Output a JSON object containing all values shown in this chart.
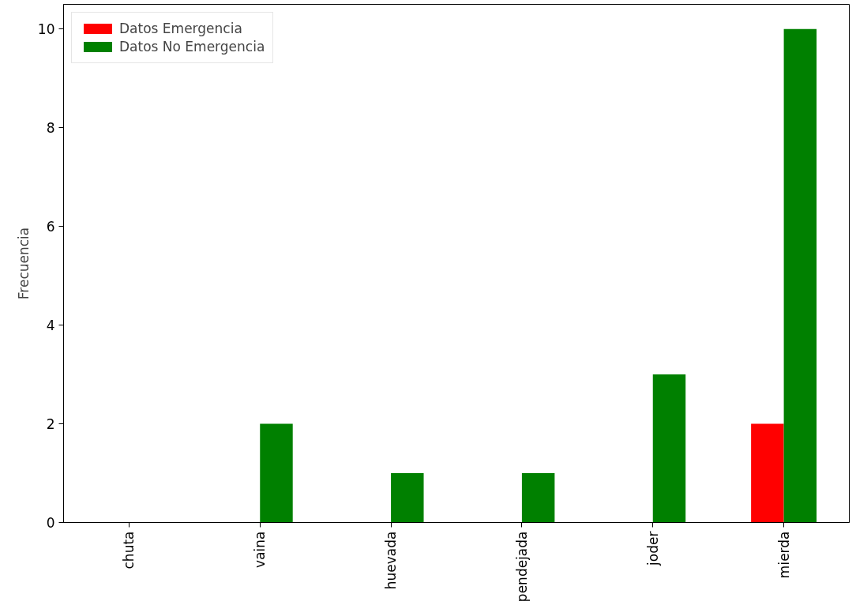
{
  "chart_data": {
    "type": "bar",
    "ylabel": "Frecuencia",
    "categories": [
      "chuta",
      "vaina",
      "huevada",
      "pendejada",
      "joder",
      "mierda"
    ],
    "series": [
      {
        "name": "Datos Emergencia",
        "color": "#ff0000",
        "values": [
          0,
          0,
          0,
          0,
          0,
          2
        ]
      },
      {
        "name": "Datos No Emergencia",
        "color": "#008000",
        "values": [
          0,
          2,
          1,
          1,
          3,
          10
        ]
      }
    ],
    "ylim": [
      0,
      10.5
    ],
    "yticks": [
      0,
      2,
      4,
      6,
      8,
      10
    ],
    "grid": false,
    "legend": "top left"
  }
}
